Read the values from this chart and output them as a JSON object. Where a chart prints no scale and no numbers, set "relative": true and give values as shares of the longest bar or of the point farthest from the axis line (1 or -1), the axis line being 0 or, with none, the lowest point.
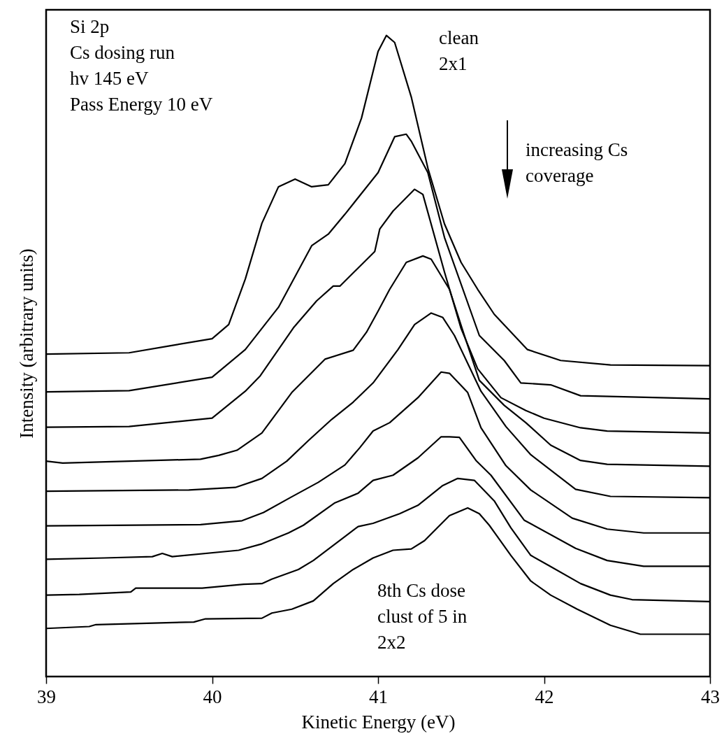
{
  "chart_data": {
    "type": "line",
    "relative": true,
    "xlabel": "Kinetic Energy (eV)",
    "ylabel": "Intensity (arbitrary units)",
    "xlim": [
      39,
      43
    ],
    "xticks": [
      39,
      40,
      41,
      42,
      43
    ],
    "grid": false,
    "marker": "none",
    "line_style": "solid",
    "annotations": [
      "Si 2p\nCs dosing run\nhv 145 eV\nPass Energy 10 eV",
      "clean\n2x1",
      "increasing Cs\ncoverage",
      "8th Cs dose\nclust of 5 in\n2x2"
    ],
    "series": [
      {
        "color": "#000000",
        "x": [
          39.0,
          39.5,
          39.75,
          40.0,
          40.1,
          40.2,
          40.3,
          40.4,
          40.5,
          40.6,
          40.7,
          40.8,
          40.9,
          41.0,
          41.05,
          41.1,
          41.2,
          41.3,
          41.4,
          41.5,
          41.6,
          41.7,
          41.9,
          42.1,
          42.4,
          43
        ],
        "values": [
          0.503,
          0.505,
          0.516,
          0.527,
          0.549,
          0.62,
          0.707,
          0.764,
          0.776,
          0.764,
          0.767,
          0.8,
          0.871,
          0.975,
          1.0,
          0.989,
          0.904,
          0.793,
          0.706,
          0.646,
          0.604,
          0.565,
          0.51,
          0.493,
          0.486,
          0.485
        ]
      },
      {
        "color": "#000000",
        "x": [
          39.0,
          39.5,
          40.0,
          40.2,
          40.4,
          40.6,
          40.7,
          40.8,
          41.0,
          41.1,
          41.17,
          41.2,
          41.3,
          41.4,
          41.61,
          41.76,
          41.86,
          42.04,
          42.22,
          43
        ],
        "values": [
          0.444,
          0.446,
          0.467,
          0.51,
          0.576,
          0.672,
          0.69,
          0.721,
          0.786,
          0.842,
          0.846,
          0.835,
          0.786,
          0.685,
          0.532,
          0.493,
          0.458,
          0.455,
          0.438,
          0.433
        ]
      },
      {
        "color": "#000000",
        "x": [
          39.0,
          39.5,
          40.0,
          40.2,
          40.29,
          40.49,
          40.63,
          40.73,
          40.77,
          40.98,
          41.01,
          41.09,
          41.22,
          41.27,
          41.4,
          41.5,
          41.6,
          41.74,
          41.89,
          42.0,
          42.22,
          42.38,
          43
        ],
        "values": [
          0.389,
          0.39,
          0.403,
          0.445,
          0.469,
          0.544,
          0.586,
          0.609,
          0.609,
          0.663,
          0.698,
          0.726,
          0.76,
          0.752,
          0.631,
          0.543,
          0.48,
          0.435,
          0.415,
          0.403,
          0.388,
          0.383,
          0.38
        ]
      },
      {
        "color": "#000000",
        "x": [
          39.0,
          39.1,
          39.93,
          40.04,
          40.15,
          40.3,
          40.48,
          40.68,
          40.85,
          40.93,
          41.0,
          41.07,
          41.17,
          41.27,
          41.32,
          41.43,
          41.52,
          41.61,
          41.76,
          41.89,
          42.04,
          42.22,
          42.38,
          43
        ],
        "values": [
          0.336,
          0.333,
          0.339,
          0.345,
          0.353,
          0.38,
          0.443,
          0.495,
          0.509,
          0.537,
          0.57,
          0.604,
          0.646,
          0.656,
          0.651,
          0.604,
          0.532,
          0.462,
          0.423,
          0.396,
          0.361,
          0.337,
          0.331,
          0.328
        ]
      },
      {
        "color": "#000000",
        "x": [
          39.0,
          39.86,
          40.14,
          40.3,
          40.45,
          40.58,
          40.72,
          40.85,
          40.97,
          41.12,
          41.22,
          41.32,
          41.39,
          41.46,
          41.62,
          41.77,
          41.92,
          42.19,
          42.4,
          43
        ],
        "values": [
          0.289,
          0.291,
          0.295,
          0.309,
          0.336,
          0.368,
          0.401,
          0.428,
          0.458,
          0.51,
          0.549,
          0.567,
          0.56,
          0.532,
          0.445,
          0.39,
          0.346,
          0.292,
          0.281,
          0.279
        ]
      },
      {
        "color": "#000000",
        "x": [
          39.0,
          39.93,
          40.18,
          40.31,
          40.47,
          40.64,
          40.8,
          40.89,
          40.97,
          41.07,
          41.24,
          41.38,
          41.43,
          41.54,
          41.62,
          41.77,
          41.92,
          42.17,
          42.38,
          42.6,
          43
        ],
        "values": [
          0.235,
          0.237,
          0.243,
          0.256,
          0.279,
          0.303,
          0.33,
          0.357,
          0.383,
          0.396,
          0.435,
          0.475,
          0.473,
          0.443,
          0.388,
          0.329,
          0.291,
          0.247,
          0.23,
          0.224,
          0.224
        ]
      },
      {
        "color": "#000000",
        "x": [
          39.0,
          39.35,
          39.64,
          39.7,
          39.76,
          40.16,
          40.3,
          40.46,
          40.55,
          40.74,
          40.88,
          40.97,
          41.09,
          41.24,
          41.38,
          41.43,
          41.49,
          41.59,
          41.68,
          41.88,
          42.19,
          42.38,
          42.6,
          43
        ],
        "values": [
          0.183,
          0.185,
          0.187,
          0.192,
          0.187,
          0.197,
          0.207,
          0.224,
          0.236,
          0.271,
          0.286,
          0.306,
          0.314,
          0.341,
          0.374,
          0.374,
          0.373,
          0.337,
          0.314,
          0.244,
          0.2,
          0.181,
          0.172,
          0.172
        ]
      },
      {
        "color": "#000000",
        "x": [
          39.0,
          39.2,
          39.51,
          39.54,
          39.94,
          40.19,
          40.3,
          40.36,
          40.52,
          40.61,
          40.88,
          40.97,
          41.13,
          41.24,
          41.39,
          41.48,
          41.58,
          41.7,
          41.8,
          41.92,
          42.03,
          42.22,
          42.4,
          42.53,
          43
        ],
        "values": [
          0.127,
          0.128,
          0.132,
          0.138,
          0.138,
          0.144,
          0.145,
          0.152,
          0.167,
          0.181,
          0.234,
          0.239,
          0.254,
          0.267,
          0.298,
          0.309,
          0.306,
          0.274,
          0.232,
          0.189,
          0.173,
          0.145,
          0.127,
          0.12,
          0.117
        ]
      },
      {
        "color": "#000000",
        "x": [
          39.0,
          39.26,
          39.3,
          39.89,
          39.96,
          40.3,
          40.36,
          40.48,
          40.61,
          40.73,
          40.85,
          40.97,
          41.09,
          41.2,
          41.28,
          41.43,
          41.54,
          41.61,
          41.67,
          41.8,
          41.92,
          42.04,
          42.2,
          42.4,
          42.58,
          43
        ],
        "values": [
          0.075,
          0.078,
          0.081,
          0.085,
          0.09,
          0.091,
          0.099,
          0.105,
          0.118,
          0.145,
          0.167,
          0.185,
          0.197,
          0.199,
          0.212,
          0.251,
          0.263,
          0.254,
          0.236,
          0.189,
          0.149,
          0.127,
          0.105,
          0.08,
          0.066,
          0.066
        ]
      }
    ]
  }
}
